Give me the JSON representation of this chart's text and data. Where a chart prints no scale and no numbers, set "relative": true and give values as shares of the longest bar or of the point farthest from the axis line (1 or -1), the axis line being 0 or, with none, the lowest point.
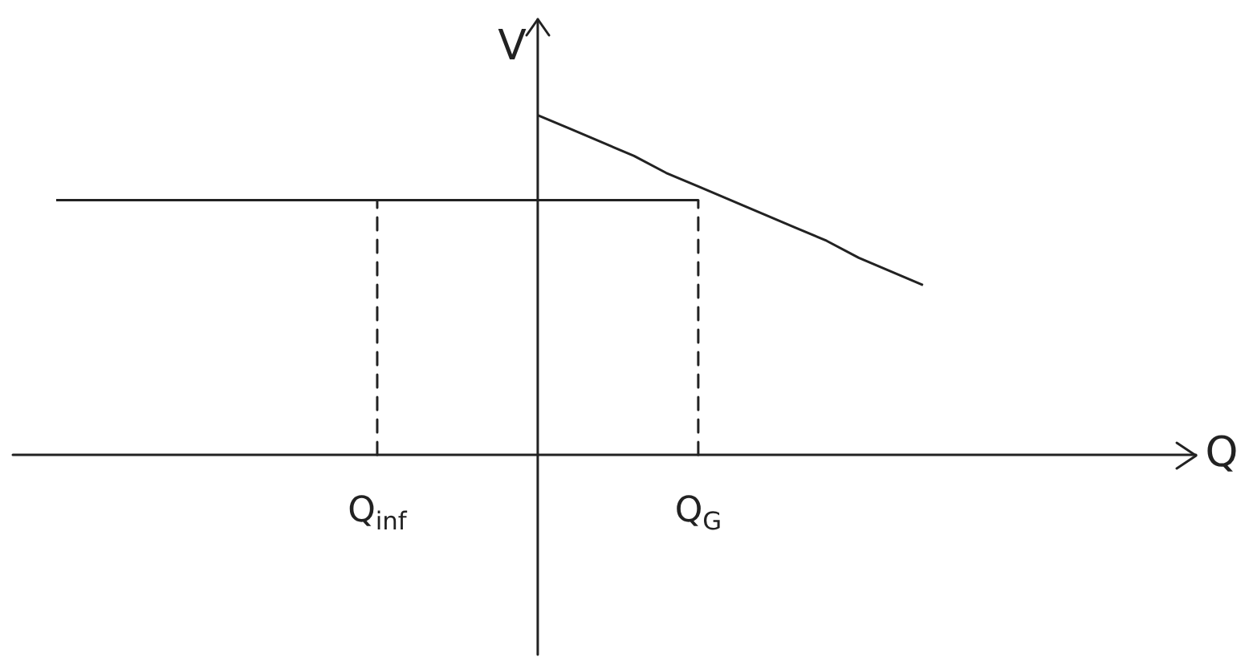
{
  "chart_data": {
    "type": "line",
    "relative": true,
    "marker": "none",
    "annotations": [
      "Q"
    ],
    "ylabel": "V",
    "categories": [
      null,
      null,
      null,
      null,
      null,
      null,
      null,
      null,
      null,
      null,
      "Q$_{inf}$",
      null,
      null,
      null,
      null,
      null,
      null,
      null,
      null,
      null,
      "Q$_{G}$",
      null,
      null,
      null,
      null,
      null,
      null,
      null
    ],
    "series": [
      {
        "color": "#222222",
        "values": [
          0.75,
          0.75,
          0.75,
          0.75,
          0.75,
          0.75,
          0.75,
          0.75,
          0.75,
          0.75,
          0.75,
          0.75,
          0.75,
          0.75,
          0.75,
          0.75,
          0.75,
          0.75,
          0.75,
          0.75,
          0.75,
          null,
          null,
          null,
          null,
          null,
          null,
          null
        ]
      },
      {
        "color": "#222222",
        "values": [
          null,
          null,
          null,
          null,
          null,
          null,
          null,
          null,
          null,
          null,
          null,
          null,
          null,
          null,
          null,
          1,
          0.96,
          0.92,
          0.88,
          0.83,
          0.79,
          0.75,
          0.71,
          0.67,
          0.63,
          0.58,
          0.54,
          0.5
        ]
      }
    ],
    "ref_lines": [
      {
        "axis": "x",
        "value": "Q$_{inf}$",
        "line_style": "dashed",
        "color": "#222222"
      },
      {
        "axis": "x",
        "value": "Q$_{G}$",
        "line_style": "dashed",
        "color": "#222222"
      }
    ]
  }
}
